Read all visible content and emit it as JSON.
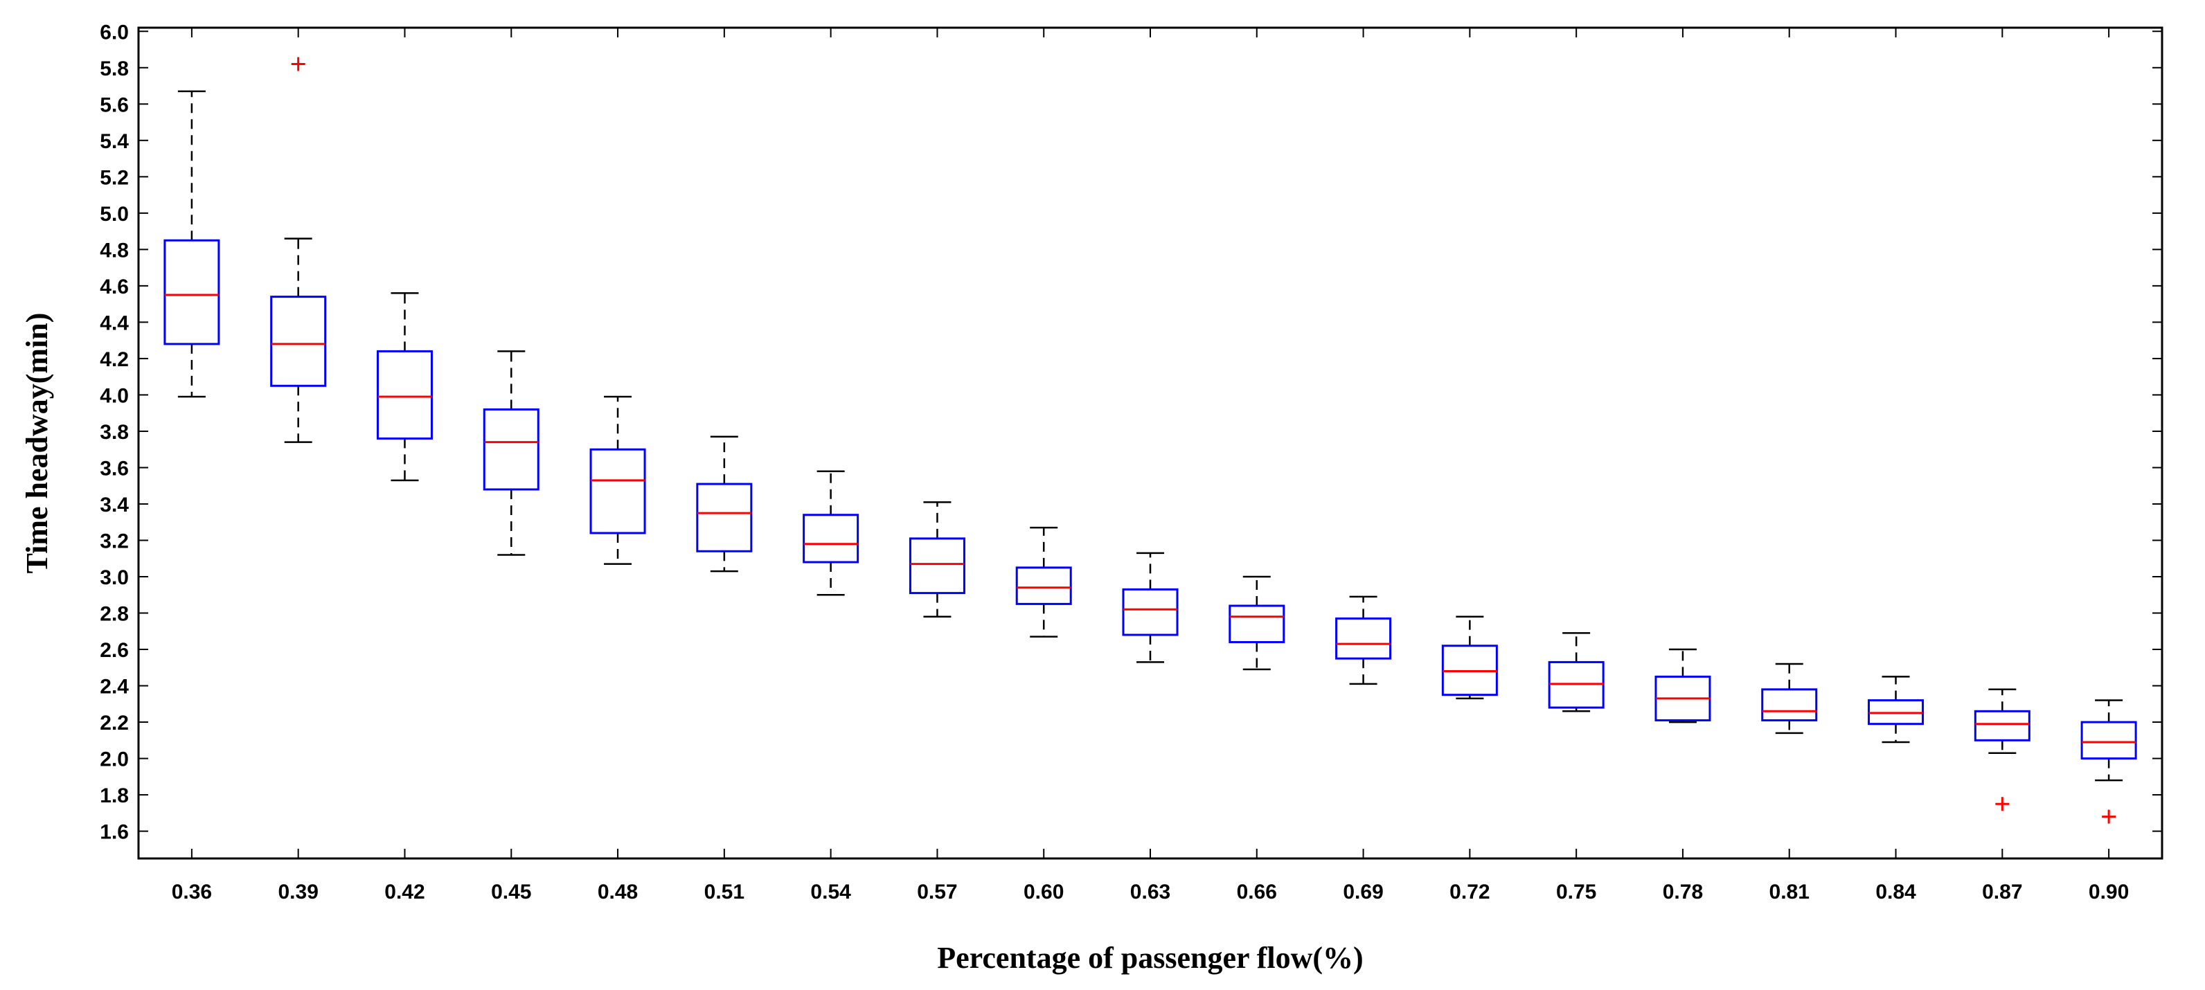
{
  "chart_data": {
    "type": "boxplot",
    "xlabel": "Percentage of passenger flow(%)",
    "ylabel": "Time headway(min)",
    "ylim": [
      1.45,
      6.02
    ],
    "yticks": [
      "1.6",
      "1.8",
      "2.0",
      "2.2",
      "2.4",
      "2.6",
      "2.8",
      "3.0",
      "3.2",
      "3.4",
      "3.6",
      "3.8",
      "4.0",
      "4.2",
      "4.4",
      "4.6",
      "4.8",
      "5.0",
      "5.2",
      "5.4",
      "5.6",
      "5.8",
      "6.0"
    ],
    "categories": [
      "0.36",
      "0.39",
      "0.42",
      "0.45",
      "0.48",
      "0.51",
      "0.54",
      "0.57",
      "0.60",
      "0.63",
      "0.66",
      "0.69",
      "0.72",
      "0.75",
      "0.78",
      "0.81",
      "0.84",
      "0.87",
      "0.90"
    ],
    "boxes": [
      {
        "category": "0.36",
        "whisker_low": 3.99,
        "q1": 4.28,
        "median": 4.55,
        "q3": 4.85,
        "whisker_high": 5.67,
        "outliers": []
      },
      {
        "category": "0.39",
        "whisker_low": 3.74,
        "q1": 4.05,
        "median": 4.28,
        "q3": 4.54,
        "whisker_high": 4.86,
        "outliers": [
          5.82
        ]
      },
      {
        "category": "0.42",
        "whisker_low": 3.53,
        "q1": 3.76,
        "median": 3.99,
        "q3": 4.24,
        "whisker_high": 4.56,
        "outliers": []
      },
      {
        "category": "0.45",
        "whisker_low": 3.12,
        "q1": 3.48,
        "median": 3.74,
        "q3": 3.92,
        "whisker_high": 4.24,
        "outliers": []
      },
      {
        "category": "0.48",
        "whisker_low": 3.07,
        "q1": 3.24,
        "median": 3.53,
        "q3": 3.7,
        "whisker_high": 3.99,
        "outliers": []
      },
      {
        "category": "0.51",
        "whisker_low": 3.03,
        "q1": 3.14,
        "median": 3.35,
        "q3": 3.51,
        "whisker_high": 3.77,
        "outliers": []
      },
      {
        "category": "0.54",
        "whisker_low": 2.9,
        "q1": 3.08,
        "median": 3.18,
        "q3": 3.34,
        "whisker_high": 3.58,
        "outliers": []
      },
      {
        "category": "0.57",
        "whisker_low": 2.78,
        "q1": 2.91,
        "median": 3.07,
        "q3": 3.21,
        "whisker_high": 3.41,
        "outliers": []
      },
      {
        "category": "0.60",
        "whisker_low": 2.67,
        "q1": 2.85,
        "median": 2.94,
        "q3": 3.05,
        "whisker_high": 3.27,
        "outliers": []
      },
      {
        "category": "0.63",
        "whisker_low": 2.53,
        "q1": 2.68,
        "median": 2.82,
        "q3": 2.93,
        "whisker_high": 3.13,
        "outliers": []
      },
      {
        "category": "0.66",
        "whisker_low": 2.49,
        "q1": 2.64,
        "median": 2.78,
        "q3": 2.84,
        "whisker_high": 3.0,
        "outliers": []
      },
      {
        "category": "0.69",
        "whisker_low": 2.41,
        "q1": 2.55,
        "median": 2.63,
        "q3": 2.77,
        "whisker_high": 2.89,
        "outliers": []
      },
      {
        "category": "0.72",
        "whisker_low": 2.33,
        "q1": 2.35,
        "median": 2.48,
        "q3": 2.62,
        "whisker_high": 2.78,
        "outliers": []
      },
      {
        "category": "0.75",
        "whisker_low": 2.26,
        "q1": 2.28,
        "median": 2.41,
        "q3": 2.53,
        "whisker_high": 2.69,
        "outliers": []
      },
      {
        "category": "0.78",
        "whisker_low": 2.2,
        "q1": 2.21,
        "median": 2.33,
        "q3": 2.45,
        "whisker_high": 2.6,
        "outliers": []
      },
      {
        "category": "0.81",
        "whisker_low": 2.14,
        "q1": 2.21,
        "median": 2.26,
        "q3": 2.38,
        "whisker_high": 2.52,
        "outliers": []
      },
      {
        "category": "0.84",
        "whisker_low": 2.09,
        "q1": 2.19,
        "median": 2.25,
        "q3": 2.32,
        "whisker_high": 2.45,
        "outliers": []
      },
      {
        "category": "0.87",
        "whisker_low": 2.03,
        "q1": 2.1,
        "median": 2.19,
        "q3": 2.26,
        "whisker_high": 2.38,
        "outliers": [
          1.75
        ]
      },
      {
        "category": "0.90",
        "whisker_low": 1.88,
        "q1": 2.0,
        "median": 2.09,
        "q3": 2.2,
        "whisker_high": 2.32,
        "outliers": [
          1.68
        ]
      }
    ],
    "colors": {
      "box": "#0000ff",
      "median": "#ff0000",
      "whisker": "#000000",
      "outlier": "#ff0000",
      "axis": "#000000"
    },
    "grid": false,
    "legend": "none"
  }
}
